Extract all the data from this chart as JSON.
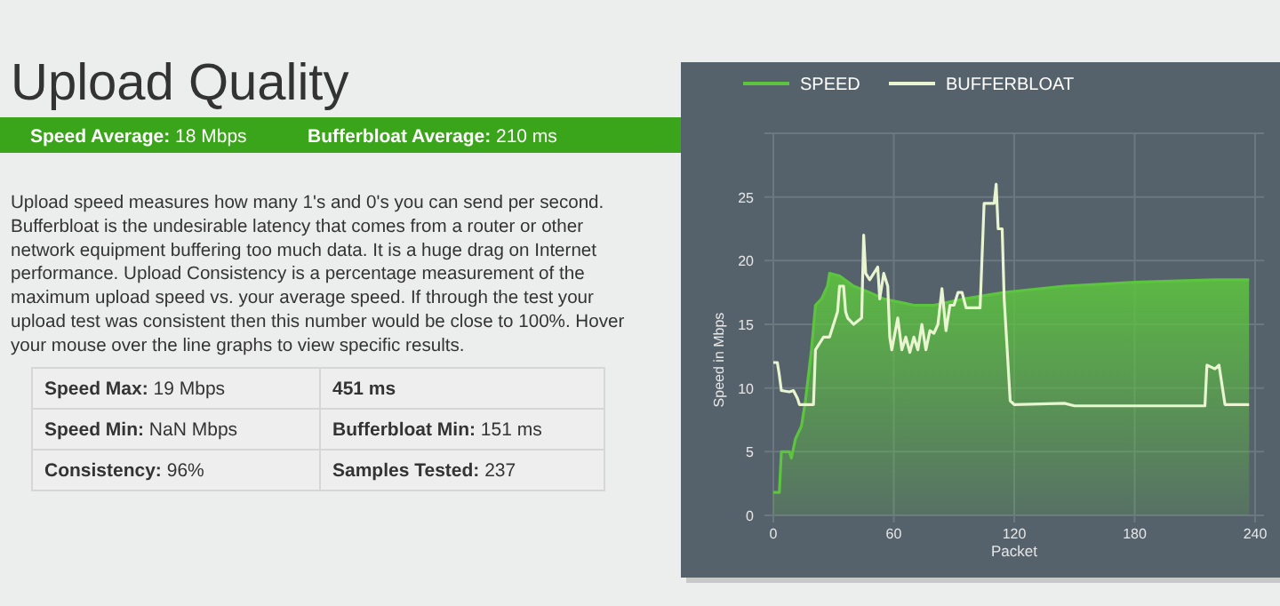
{
  "chart_data": [
    {
      "type": "other",
      "title": "Upload Quality",
      "annotations": [
        "Speed Average: 18 Mbps",
        "Bufferbloat Average: 210 ms",
        "Upload speed measures how many 1's and 0's you can send per second.",
        "Bufferbloat is the undesirable latency that comes from a router or other",
        "network equipment buffering too much data. It is a huge drag on Internet",
        "performance. Upload Consistency is a percentage measurement of the",
        "maximum upload speed vs. your average speed. If through the test your",
        "upload test was consistent then this number would be close to 100%. Hover",
        "your mouse over the line graphs to view specific results.",
        "Speed Max: 19 Mbps",
        "451 ms",
        "Speed Min: NaN Mbps",
        "Bufferbloat Min: 151 ms",
        "Consistency: 96%",
        "Samples Tested: 237"
      ]
    },
    {
      "type": "area",
      "xlabel": "Packet",
      "ylabel": "Speed in Mbps",
      "xlim": [
        0,
        240
      ],
      "ylim": [
        0,
        30
      ],
      "xticks": [
        0,
        60,
        120,
        180,
        240
      ],
      "yticks": [
        0,
        5,
        10,
        15,
        20,
        25
      ],
      "grid": true,
      "legend": "top",
      "marker": "none",
      "series": [
        {
          "name": "SPEED",
          "color": "#5cc43e",
          "x": [
            0,
            3,
            4,
            8,
            9,
            11,
            14,
            16,
            19,
            21,
            24,
            27,
            28,
            33,
            40,
            48,
            55,
            70,
            80,
            95,
            115,
            145,
            180,
            220,
            237
          ],
          "values": [
            1.8,
            1.8,
            5,
            5,
            4.5,
            6,
            7,
            9,
            13,
            16.5,
            17,
            18,
            19,
            18.8,
            18,
            17.5,
            17,
            16.5,
            16.5,
            17,
            17.5,
            18,
            18.3,
            18.5,
            18.5
          ]
        },
        {
          "name": "BUFFERBLOAT",
          "type": "line",
          "color": "#e8f5d0",
          "x": [
            0,
            2,
            3,
            4,
            8,
            10,
            12,
            13,
            20,
            21,
            23,
            25,
            28,
            30,
            32,
            33,
            35,
            36,
            37,
            40,
            44,
            45,
            46,
            48,
            52,
            53,
            55,
            57,
            58,
            59,
            62,
            64,
            66,
            68,
            70,
            72,
            74,
            76,
            78,
            80,
            82,
            84,
            86,
            88,
            90,
            92,
            94,
            96,
            103,
            105,
            110,
            111,
            112,
            114,
            115,
            118,
            120,
            145,
            150,
            215,
            216,
            220,
            222,
            225,
            237
          ],
          "values": [
            12,
            12,
            11,
            9.8,
            9.7,
            9.8,
            9.2,
            8.7,
            8.7,
            13,
            13.5,
            14,
            14,
            15,
            16,
            18,
            18,
            16,
            15.5,
            15,
            15.5,
            22,
            19,
            18.5,
            19.5,
            17,
            19,
            18,
            14,
            13,
            15.5,
            13,
            14,
            12.8,
            14,
            13,
            15,
            13,
            14.5,
            14.3,
            15,
            17.8,
            14.5,
            16.5,
            16.5,
            17.5,
            17.5,
            16.3,
            16.3,
            24.5,
            24.5,
            26,
            22.5,
            22.5,
            17,
            9,
            8.7,
            8.8,
            8.6,
            8.6,
            11.8,
            11.5,
            11.8,
            8.7,
            8.7
          ]
        }
      ]
    }
  ]
}
